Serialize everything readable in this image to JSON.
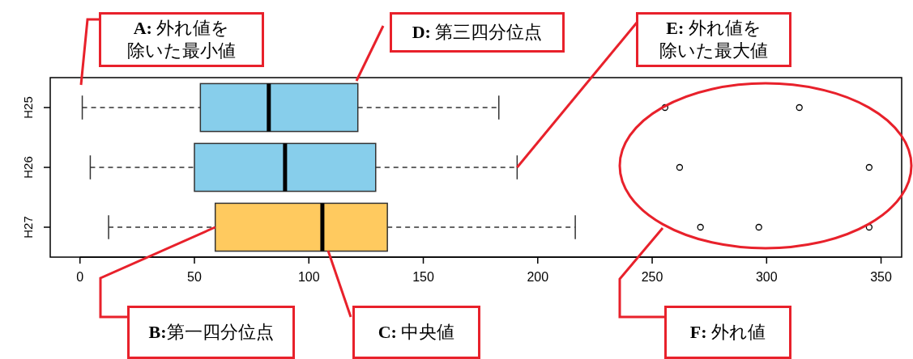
{
  "chart_data": {
    "type": "box",
    "orientation": "horizontal",
    "categories": [
      "H25",
      "H26",
      "H27"
    ],
    "colors": [
      "#87ceeb",
      "#87ceeb",
      "#ffca5f"
    ],
    "boxes": [
      {
        "low": 1,
        "q1": 52.6,
        "median": 82.5,
        "q3": 121.4,
        "high": 183,
        "outliers": [
          255.6,
          314.3
        ]
      },
      {
        "low": 4.5,
        "q1": 50,
        "median": 89.6,
        "q3": 129.2,
        "high": 191,
        "outliers": [
          262,
          344.8
        ]
      },
      {
        "low": 12.5,
        "q1": 59.1,
        "median": 105.9,
        "q3": 134.3,
        "high": 216.4,
        "outliers": [
          271.1,
          296.6,
          344.8
        ]
      }
    ],
    "xlim": [
      -13,
      359
    ],
    "xticks": [
      0,
      50,
      100,
      150,
      200,
      250,
      300,
      350
    ],
    "grid": false,
    "annotations": [
      "A: 外れ値を除いた最小値",
      "D: 第三四分位点",
      {
        "text": "E: 外れ値を除いた最大値",
        "x": 191,
        "y": "H26"
      },
      {
        "text": "B:第一四分位点",
        "x": 59.1,
        "y": "H27"
      },
      "C: 中央値",
      "F: 外れ値"
    ]
  }
}
